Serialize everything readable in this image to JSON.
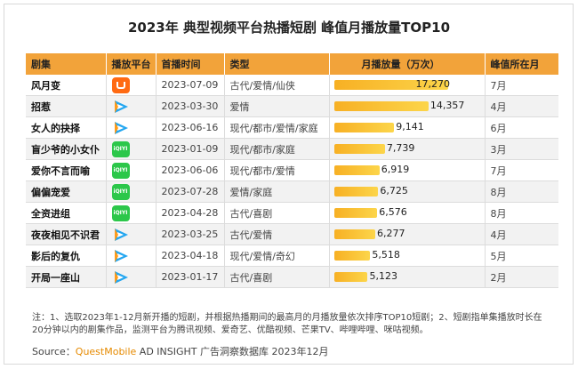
{
  "title": "2023年 典型视频平台热播短剧 峰值月播放量TOP10",
  "headers": {
    "name": "剧集",
    "platform": "播放平台",
    "date": "首播时间",
    "genre": "类型",
    "plays": "月播放量（万次）",
    "peak": "峰值所在月"
  },
  "platform_icons": {
    "mango": "mango-tv-icon",
    "tencent": "tencent-video-icon",
    "iqiyi": "iqiyi-icon"
  },
  "iqiyi_text": "iQIYI",
  "colors": {
    "header": "#f2a33a",
    "bar": "#f7b024",
    "mango": "#ff6a13",
    "iqiyi": "#2cc74a"
  },
  "rows": [
    {
      "name": "风月变",
      "platform": "mango",
      "date": "2023-07-09",
      "genre": "古代/爱情/仙侠",
      "plays": "17,270",
      "peak": "7月"
    },
    {
      "name": "招惹",
      "platform": "tencent",
      "date": "2023-03-30",
      "genre": "爱情",
      "plays": "14,357",
      "peak": "4月"
    },
    {
      "name": "女人的抉择",
      "platform": "tencent",
      "date": "2023-06-16",
      "genre": "现代/都市/爱情/家庭",
      "plays": "9,141",
      "peak": "6月"
    },
    {
      "name": "盲少爷的小女仆",
      "platform": "iqiyi",
      "date": "2023-01-09",
      "genre": "现代/都市/家庭",
      "plays": "7,739",
      "peak": "3月"
    },
    {
      "name": "爱你不言而喻",
      "platform": "iqiyi",
      "date": "2023-06-06",
      "genre": "现代/都市/爱情",
      "plays": "6,919",
      "peak": "7月"
    },
    {
      "name": "偏偏宠爱",
      "platform": "iqiyi",
      "date": "2023-07-28",
      "genre": "爱情/家庭",
      "plays": "6,725",
      "peak": "8月"
    },
    {
      "name": "全资进组",
      "platform": "iqiyi",
      "date": "2023-04-28",
      "genre": "古代/喜剧",
      "plays": "6,576",
      "peak": "8月"
    },
    {
      "name": "夜夜相见不识君",
      "platform": "tencent",
      "date": "2023-03-25",
      "genre": "古代/爱情",
      "plays": "6,277",
      "peak": "4月"
    },
    {
      "name": "影后的复仇",
      "platform": "tencent",
      "date": "2023-04-18",
      "genre": "现代/爱情/奇幻",
      "plays": "5,518",
      "peak": "5月"
    },
    {
      "name": "开局一座山",
      "platform": "tencent",
      "date": "2023-01-17",
      "genre": "古代/喜剧",
      "plays": "5,123",
      "peak": "2月"
    }
  ],
  "chart_data": {
    "type": "table",
    "title": "2023年 典型视频平台热播短剧 峰值月播放量TOP10",
    "series": [
      {
        "name": "月播放量（万次）",
        "values": [
          17270,
          14357,
          9141,
          7739,
          6919,
          6725,
          6576,
          6277,
          5518,
          5123
        ]
      }
    ],
    "categories": [
      "风月变",
      "招惹",
      "女人的抉择",
      "盲少爷的小女仆",
      "爱你不言而喻",
      "偏偏宠爱",
      "全资进组",
      "夜夜相见不识君",
      "影后的复仇",
      "开局一座山"
    ],
    "xlim": [
      0,
      17270
    ]
  },
  "note": "注：1、选取2023年1-12月新开播的短剧，并根据热播期间的最高月的月播放量依次排序TOP10短剧；2、短剧指单集播放时长在20分钟以内的剧集作品，监测平台为腾讯视频、爱奇艺、优酷视频、芒果TV、哔哩哔哩、咪咕视频。",
  "source_prefix": "Source：",
  "source_brand": "QuestMobile",
  "source_rest": " AD INSIGHT 广告洞察数据库 2023年12月"
}
